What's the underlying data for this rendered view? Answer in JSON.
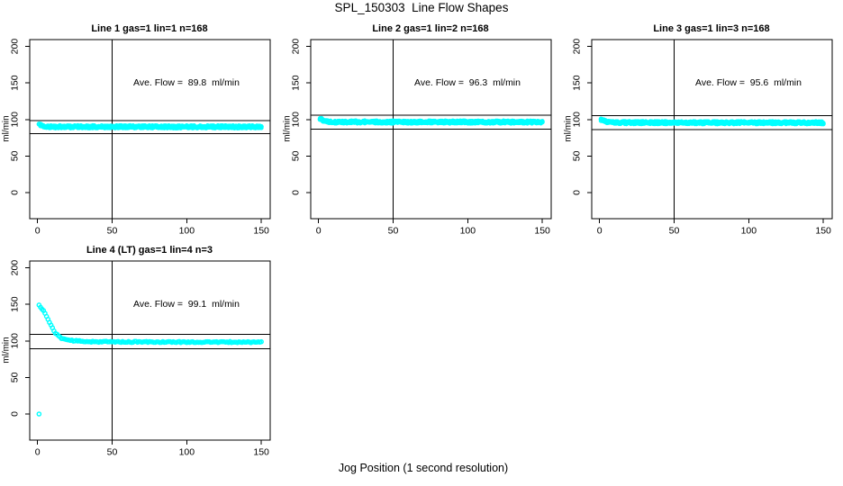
{
  "figure": {
    "title": "SPL_150303  Line Flow Shapes",
    "xlabel": "Jog Position (1 second resolution)",
    "point_color": "#00ffff",
    "axis_color": "#000000",
    "background": "#ffffff",
    "axes": {
      "xlim": [
        -5.25,
        155.95
      ],
      "ylim": [
        -35.7,
        209.3
      ],
      "xticks": [
        0,
        50,
        100,
        150
      ],
      "yticks": [
        0,
        50,
        100,
        150,
        200
      ]
    }
  },
  "chart_data": [
    {
      "type": "scatter",
      "title": "Line 1 gas=1 lin=1 n=168",
      "line": 1,
      "gas": 1,
      "lin": 1,
      "n": 168,
      "ylabel": "ml/min",
      "ave_flow": 89.8,
      "ave_flow_text": "Ave. Flow =  89.8  ml/min",
      "ref_v_line": 50,
      "ref_h_lines": [
        98.8,
        80.8
      ],
      "outliers": [],
      "points_spec": {
        "seed": 11,
        "x_start": 1,
        "x_end": 150,
        "x_step": 1,
        "samples": 4,
        "jitter": 1.8,
        "marker_radius": 1.9,
        "stroke_width": 1.3,
        "marker": "open-circle",
        "envelope": [
          [
            1,
            93.5
          ],
          [
            2,
            92.5
          ],
          [
            3,
            91.3
          ],
          [
            5,
            90.4
          ],
          [
            8,
            90
          ],
          [
            150,
            90
          ]
        ]
      }
    },
    {
      "type": "scatter",
      "title": "Line 2 gas=1 lin=2 n=168",
      "line": 2,
      "gas": 1,
      "lin": 2,
      "n": 168,
      "ylabel": "ml/min",
      "ave_flow": 96.3,
      "ave_flow_text": "Ave. Flow =  96.3  ml/min",
      "ref_v_line": 50,
      "ref_h_lines": [
        105.9,
        86.7
      ],
      "outliers": [],
      "points_spec": {
        "seed": 22,
        "x_start": 1,
        "x_end": 150,
        "x_step": 1,
        "samples": 4,
        "jitter": 1.8,
        "marker_radius": 1.9,
        "stroke_width": 1.3,
        "marker": "open-circle",
        "envelope": [
          [
            1,
            101
          ],
          [
            2,
            100.2
          ],
          [
            3,
            99
          ],
          [
            5,
            97.8
          ],
          [
            8,
            97
          ],
          [
            12,
            96.6
          ],
          [
            150,
            96.4
          ]
        ]
      }
    },
    {
      "type": "scatter",
      "title": "Line 3 gas=1 lin=3 n=168",
      "line": 3,
      "gas": 1,
      "lin": 3,
      "n": 168,
      "ylabel": "ml/min",
      "ave_flow": 95.6,
      "ave_flow_text": "Ave. Flow =  95.6  ml/min",
      "ref_v_line": 50,
      "ref_h_lines": [
        105.2,
        86.0
      ],
      "outliers": [],
      "points_spec": {
        "seed": 33,
        "x_start": 1,
        "x_end": 150,
        "x_step": 1,
        "samples": 4,
        "jitter": 1.8,
        "marker_radius": 1.9,
        "stroke_width": 1.3,
        "marker": "open-circle",
        "envelope": [
          [
            1,
            100
          ],
          [
            3,
            98
          ],
          [
            5,
            96.8
          ],
          [
            8,
            96
          ],
          [
            12,
            95.7
          ],
          [
            150,
            95.5
          ]
        ]
      }
    },
    {
      "type": "scatter",
      "title": "Line 4 (LT) gas=1 lin=4 n=3",
      "line": 4,
      "gas": 1,
      "lin": 4,
      "n": 3,
      "ylabel": "ml/min",
      "ave_flow": 99.1,
      "ave_flow_text": "Ave. Flow =  99.1  ml/min",
      "ref_v_line": 50,
      "ref_h_lines": [
        109.0,
        89.2
      ],
      "outliers": [
        [
          1,
          0
        ]
      ],
      "points_spec": {
        "seed": 44,
        "x_start": 1,
        "x_end": 150,
        "x_step": 1,
        "samples": 1,
        "jitter": 0.8,
        "marker_radius": 2.1,
        "stroke_width": 1.4,
        "marker": "open-circle",
        "envelope": [
          [
            1,
            148.5
          ],
          [
            2,
            146.5
          ],
          [
            3,
            144
          ],
          [
            4,
            141
          ],
          [
            5,
            137.5
          ],
          [
            6,
            133.5
          ],
          [
            7,
            129.5
          ],
          [
            8,
            125.5
          ],
          [
            9,
            121.5
          ],
          [
            10,
            117.5
          ],
          [
            11,
            114
          ],
          [
            12,
            111
          ],
          [
            13,
            108.5
          ],
          [
            14,
            106.5
          ],
          [
            15,
            105
          ],
          [
            16,
            104
          ],
          [
            18,
            102.5
          ],
          [
            20,
            101.5
          ],
          [
            23,
            100.5
          ],
          [
            26,
            100
          ],
          [
            30,
            99.4
          ],
          [
            40,
            98.9
          ],
          [
            60,
            98.6
          ],
          [
            100,
            98.4
          ],
          [
            150,
            98.3
          ]
        ]
      }
    }
  ]
}
